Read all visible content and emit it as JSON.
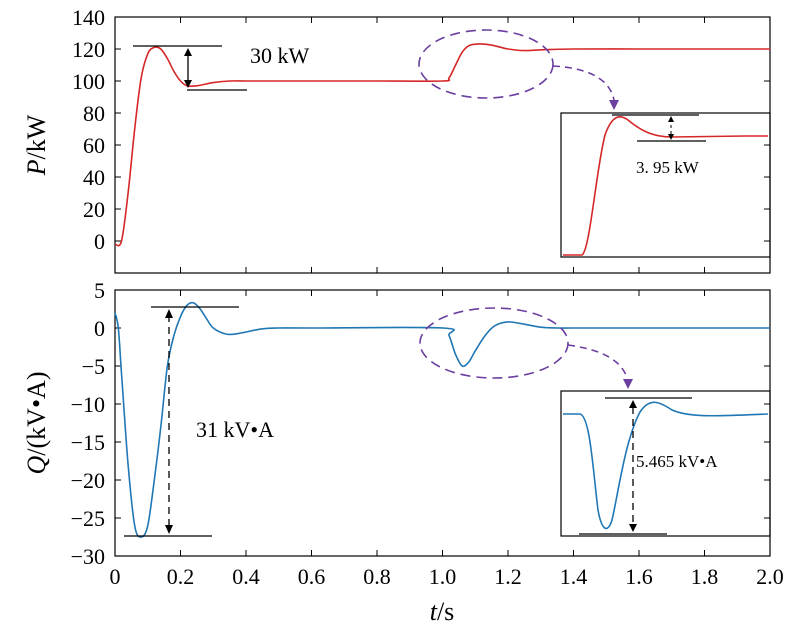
{
  "chart_data": [
    {
      "type": "line",
      "title": "",
      "ylabel": "P/kW",
      "ylabel_var": "P",
      "ylabel_unit": "/kW",
      "xlim": [
        0,
        2.0
      ],
      "ylim": [
        -20,
        140
      ],
      "yticks": [
        "0",
        "20",
        "40",
        "60",
        "80",
        "100",
        "120",
        "140"
      ],
      "grid": false,
      "series": [
        {
          "color": "#d62728",
          "x": [
            0,
            0.02,
            0.04,
            0.06,
            0.08,
            0.1,
            0.12,
            0.14,
            0.16,
            0.18,
            0.2,
            0.22,
            0.25,
            0.3,
            0.35,
            0.4,
            0.5,
            0.6,
            0.8,
            1.0,
            1.02,
            1.04,
            1.06,
            1.08,
            1.1,
            1.13,
            1.16,
            1.2,
            1.25,
            1.3,
            1.4,
            1.6,
            1.8,
            2.0
          ],
          "y": [
            -2,
            0,
            30,
            70,
            102,
            117,
            121,
            120,
            114,
            106,
            100,
            97,
            97,
            99,
            100,
            100,
            100,
            100,
            100,
            100,
            102,
            110,
            118,
            122,
            123,
            123,
            122,
            120,
            119,
            119.5,
            120,
            120,
            120,
            120
          ]
        }
      ],
      "annotations": [
        {
          "text": "30 kW",
          "x": 0.4,
          "y": 114
        },
        {
          "text": "3. 95 kW",
          "inset": true
        }
      ]
    },
    {
      "type": "line",
      "title": "",
      "xlabel": "t/s",
      "xlabel_var": "t",
      "xlabel_unit": "/s",
      "ylabel": "Q/(kV•A)",
      "ylabel_var": "Q",
      "ylabel_unit": "/(kV•A)",
      "xlim": [
        0,
        2.0
      ],
      "ylim": [
        -30,
        5
      ],
      "xticks": [
        "0",
        "0.2",
        "0.4",
        "0.6",
        "0.8",
        "1.0",
        "1.2",
        "1.4",
        "1.6",
        "1.8",
        "2.0"
      ],
      "yticks": [
        "5",
        "0",
        "−5",
        "−10",
        "−15",
        "−20",
        "−25",
        "−30"
      ],
      "grid": false,
      "series": [
        {
          "color": "#1f77b4",
          "x": [
            0,
            0.01,
            0.02,
            0.04,
            0.06,
            0.08,
            0.1,
            0.12,
            0.14,
            0.16,
            0.18,
            0.2,
            0.22,
            0.24,
            0.26,
            0.28,
            0.3,
            0.34,
            0.38,
            0.45,
            0.5,
            0.6,
            1.0,
            1.02,
            1.04,
            1.06,
            1.08,
            1.1,
            1.13,
            1.16,
            1.2,
            1.25,
            1.3,
            1.35,
            1.4,
            1.6,
            2.0
          ],
          "y": [
            2,
            0,
            -6,
            -18,
            -26,
            -27.5,
            -26,
            -20,
            -13,
            -5,
            -1,
            1.5,
            3,
            3.3,
            2.5,
            1.2,
            0,
            -0.8,
            -0.7,
            -0.1,
            0,
            0,
            0,
            -1,
            -3.5,
            -5,
            -4.5,
            -3,
            -1,
            0.3,
            0.8,
            0.5,
            0.1,
            0,
            0,
            0,
            0
          ]
        }
      ],
      "annotations": [
        {
          "text": "31 kV•A",
          "x": 0.45,
          "y": -17
        },
        {
          "text": "5.465 kV•A",
          "inset": true
        }
      ]
    }
  ]
}
